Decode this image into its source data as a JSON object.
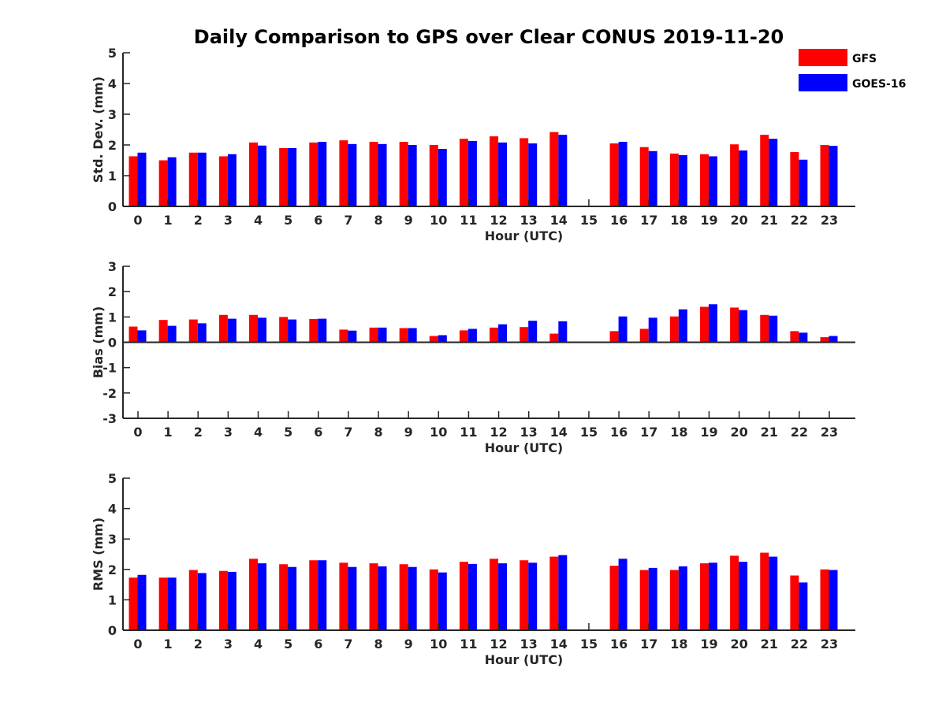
{
  "title": "Daily Comparison to GPS over Clear CONUS 2019-11-20",
  "legend": [
    {
      "label": "GFS",
      "color": "#ff0000"
    },
    {
      "label": "GOES-16",
      "color": "#0000ff"
    }
  ],
  "chart_data": [
    {
      "type": "bar",
      "title": "Daily Comparison to GPS over Clear CONUS 2019-11-20",
      "xlabel": "Hour (UTC)",
      "ylabel": "Std. Dev. (mm)",
      "ylim": [
        0,
        5
      ],
      "yticks": [
        "0",
        "1",
        "2",
        "3",
        "4",
        "5"
      ],
      "categories": [
        "0",
        "1",
        "2",
        "3",
        "4",
        "5",
        "6",
        "7",
        "8",
        "9",
        "10",
        "11",
        "12",
        "13",
        "14",
        "15",
        "16",
        "17",
        "18",
        "19",
        "20",
        "21",
        "22",
        "23"
      ],
      "series": [
        {
          "name": "GFS",
          "color": "#ff0000",
          "values": [
            1.63,
            1.5,
            1.75,
            1.63,
            2.08,
            1.9,
            2.08,
            2.15,
            2.1,
            2.1,
            2.0,
            2.2,
            2.28,
            2.22,
            2.42,
            null,
            2.05,
            1.93,
            1.72,
            1.7,
            2.02,
            2.33,
            1.77,
            2.0
          ]
        },
        {
          "name": "GOES-16",
          "color": "#0000ff",
          "values": [
            1.75,
            1.6,
            1.75,
            1.7,
            1.98,
            1.9,
            2.1,
            2.03,
            2.03,
            2.0,
            1.87,
            2.13,
            2.08,
            2.05,
            2.33,
            null,
            2.1,
            1.8,
            1.67,
            1.63,
            1.82,
            2.2,
            1.52,
            1.97
          ]
        }
      ]
    },
    {
      "type": "bar",
      "xlabel": "Hour (UTC)",
      "ylabel": "Bias (mm)",
      "ylim": [
        -3,
        3
      ],
      "yticks": [
        "-3",
        "-2",
        "-1",
        "0",
        "1",
        "2",
        "3"
      ],
      "categories": [
        "0",
        "1",
        "2",
        "3",
        "4",
        "5",
        "6",
        "7",
        "8",
        "9",
        "10",
        "11",
        "12",
        "13",
        "14",
        "15",
        "16",
        "17",
        "18",
        "19",
        "20",
        "21",
        "22",
        "23"
      ],
      "series": [
        {
          "name": "GFS",
          "color": "#ff0000",
          "values": [
            0.62,
            0.88,
            0.9,
            1.08,
            1.08,
            1.0,
            0.92,
            0.5,
            0.58,
            0.56,
            0.25,
            0.47,
            0.58,
            0.6,
            0.34,
            null,
            0.44,
            0.53,
            1.02,
            1.4,
            1.37,
            1.08,
            0.44,
            0.2
          ]
        },
        {
          "name": "GOES-16",
          "color": "#0000ff",
          "values": [
            0.47,
            0.65,
            0.75,
            0.93,
            0.97,
            0.9,
            0.93,
            0.46,
            0.58,
            0.56,
            0.28,
            0.53,
            0.71,
            0.85,
            0.83,
            null,
            1.02,
            0.97,
            1.3,
            1.5,
            1.27,
            1.05,
            0.38,
            0.25
          ]
        }
      ]
    },
    {
      "type": "bar",
      "xlabel": "Hour (UTC)",
      "ylabel": "RMS (mm)",
      "ylim": [
        0,
        5
      ],
      "yticks": [
        "0",
        "1",
        "2",
        "3",
        "4",
        "5"
      ],
      "categories": [
        "0",
        "1",
        "2",
        "3",
        "4",
        "5",
        "6",
        "7",
        "8",
        "9",
        "10",
        "11",
        "12",
        "13",
        "14",
        "15",
        "16",
        "17",
        "18",
        "19",
        "20",
        "21",
        "22",
        "23"
      ],
      "series": [
        {
          "name": "GFS",
          "color": "#ff0000",
          "values": [
            1.73,
            1.73,
            1.98,
            1.95,
            2.35,
            2.17,
            2.3,
            2.22,
            2.2,
            2.17,
            2.0,
            2.25,
            2.35,
            2.3,
            2.42,
            null,
            2.12,
            1.98,
            1.98,
            2.2,
            2.45,
            2.55,
            1.8,
            2.0
          ]
        },
        {
          "name": "GOES-16",
          "color": "#0000ff",
          "values": [
            1.82,
            1.73,
            1.88,
            1.92,
            2.2,
            2.08,
            2.3,
            2.08,
            2.1,
            2.08,
            1.9,
            2.18,
            2.2,
            2.22,
            2.47,
            null,
            2.35,
            2.05,
            2.1,
            2.22,
            2.25,
            2.42,
            1.57,
            1.98
          ]
        }
      ]
    }
  ]
}
